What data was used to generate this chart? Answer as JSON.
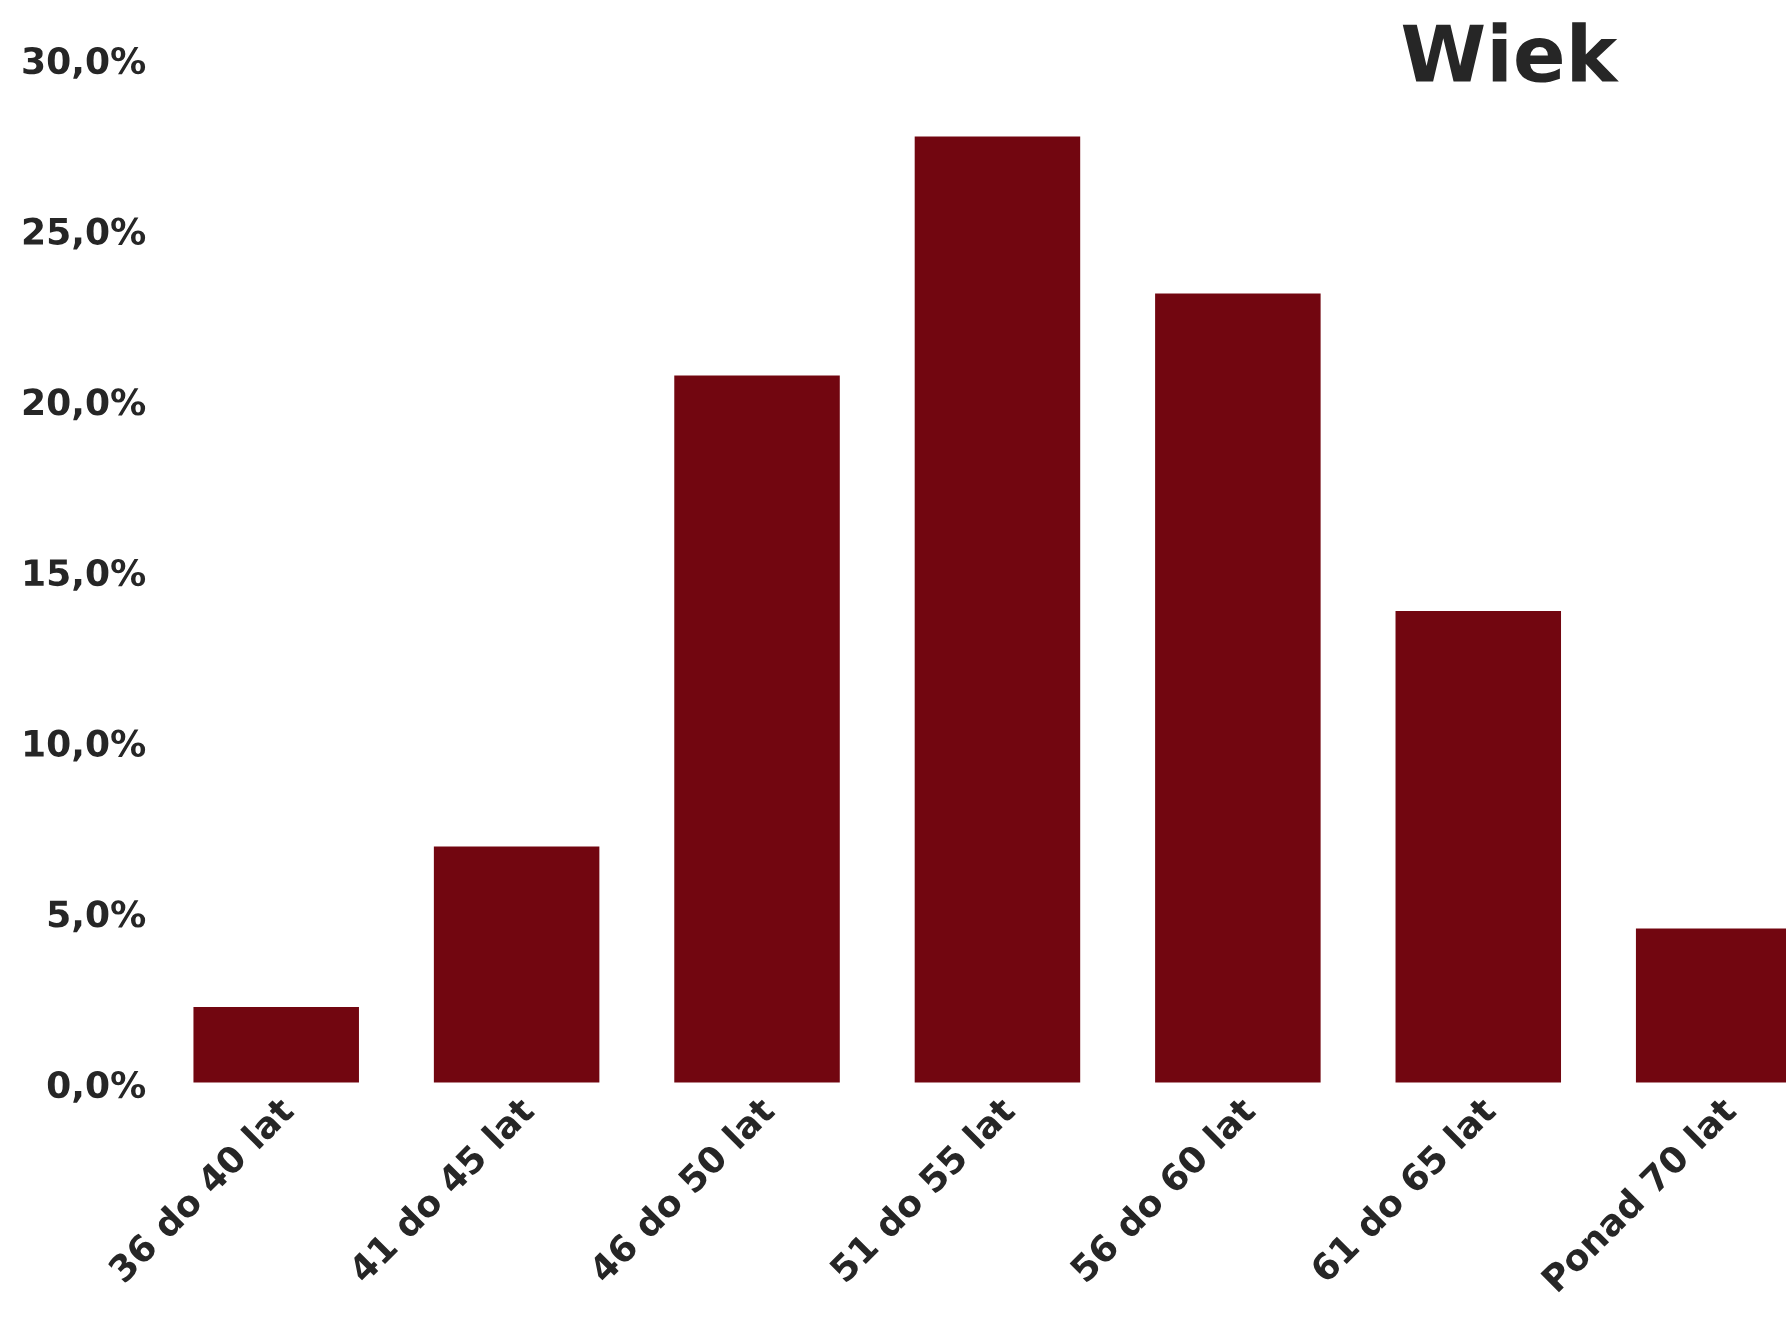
{
  "chart_data": {
    "type": "bar",
    "title": "Wiek",
    "categories": [
      "36 do 40 lat",
      "41 do 45 lat",
      "46 do 50 lat",
      "51 do 55 lat",
      "56 do 60 lat",
      "61 do 65 lat",
      "Ponad 70 lat"
    ],
    "values": [
      2.3,
      7.0,
      20.8,
      27.8,
      23.2,
      13.9,
      4.6
    ],
    "color": "#720610",
    "ylim": [
      0,
      30
    ],
    "yticks": [
      {
        "value": 0,
        "label": "0,0%"
      },
      {
        "value": 5,
        "label": "5,0%"
      },
      {
        "value": 10,
        "label": "10,0%"
      },
      {
        "value": 15,
        "label": "15,0%"
      },
      {
        "value": 20,
        "label": "20,0%"
      },
      {
        "value": 25,
        "label": "25,0%"
      },
      {
        "value": 30,
        "label": "30,0%"
      }
    ],
    "grid": false,
    "legend": false
  }
}
